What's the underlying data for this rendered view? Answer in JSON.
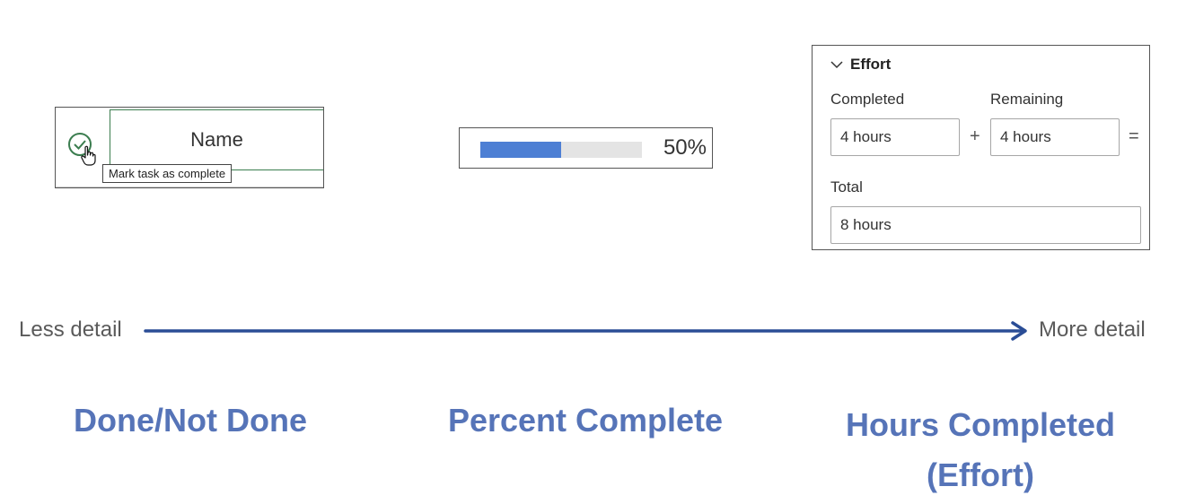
{
  "panels": {
    "task": {
      "name_header": "Name",
      "tooltip": "Mark task as complete",
      "check_icon": "circle-check-icon",
      "cursor_icon": "hand-pointer-icon"
    },
    "progress": {
      "percent": 0.5,
      "label": "50%",
      "fill_color": "#4d7fd4",
      "track_color": "#e4e4e4"
    },
    "effort": {
      "title": "Effort",
      "toggle_icon": "chevron-down-icon",
      "completed_label": "Completed",
      "completed_value": "4 hours",
      "remaining_label": "Remaining",
      "remaining_value": "4 hours",
      "plus": "+",
      "equals": "=",
      "total_label": "Total",
      "total_value": "8 hours"
    }
  },
  "scale": {
    "left_label": "Less detail",
    "right_label": "More detail",
    "arrow_color": "#2a4d96"
  },
  "categories": [
    {
      "line1": "Done/Not Done"
    },
    {
      "line1": "Percent Complete"
    },
    {
      "line1": "Hours Completed",
      "line2": "(Effort)"
    }
  ],
  "colors": {
    "category_text": "#5674b8",
    "check_green": "#3b7d4f"
  }
}
